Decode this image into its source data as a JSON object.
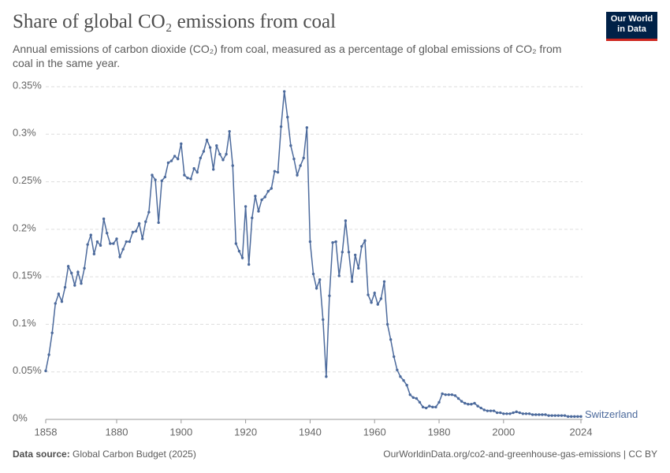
{
  "chart_data": {
    "type": "line",
    "title": "Share of global CO₂ emissions from coal",
    "subtitle": "Annual emissions of carbon dioxide (CO₂) from coal, measured as a percentage of global emissions of CO₂ from coal in the same year.",
    "logo": [
      "Our World",
      "in Data"
    ],
    "source_label": "Data source:",
    "source": "Global Carbon Budget (2025)",
    "credit": "OurWorldinData.org/co2-and-greenhouse-gas-emissions | CC BY",
    "x": [
      1858,
      1859,
      1860,
      1861,
      1862,
      1863,
      1864,
      1865,
      1866,
      1867,
      1868,
      1869,
      1870,
      1871,
      1872,
      1873,
      1874,
      1875,
      1876,
      1877,
      1878,
      1879,
      1880,
      1881,
      1882,
      1883,
      1884,
      1885,
      1886,
      1887,
      1888,
      1889,
      1890,
      1891,
      1892,
      1893,
      1894,
      1895,
      1896,
      1897,
      1898,
      1899,
      1900,
      1901,
      1902,
      1903,
      1904,
      1905,
      1906,
      1907,
      1908,
      1909,
      1910,
      1911,
      1912,
      1913,
      1914,
      1915,
      1916,
      1917,
      1918,
      1919,
      1920,
      1921,
      1922,
      1923,
      1924,
      1925,
      1926,
      1927,
      1928,
      1929,
      1930,
      1931,
      1932,
      1933,
      1934,
      1935,
      1936,
      1937,
      1938,
      1939,
      1940,
      1941,
      1942,
      1943,
      1944,
      1945,
      1946,
      1947,
      1948,
      1949,
      1950,
      1951,
      1952,
      1953,
      1954,
      1955,
      1956,
      1957,
      1958,
      1959,
      1960,
      1961,
      1962,
      1963,
      1964,
      1965,
      1966,
      1967,
      1968,
      1969,
      1970,
      1971,
      1972,
      1973,
      1974,
      1975,
      1976,
      1977,
      1978,
      1979,
      1980,
      1981,
      1982,
      1983,
      1984,
      1985,
      1986,
      1987,
      1988,
      1989,
      1990,
      1991,
      1992,
      1993,
      1994,
      1995,
      1996,
      1997,
      1998,
      1999,
      2000,
      2001,
      2002,
      2003,
      2004,
      2005,
      2006,
      2007,
      2008,
      2009,
      2010,
      2011,
      2012,
      2013,
      2014,
      2015,
      2016,
      2017,
      2018,
      2019,
      2020,
      2021,
      2022,
      2023,
      2024
    ],
    "series": [
      {
        "name": "Switzerland",
        "color": "#4c6a9c",
        "values": [
          0.051,
          0.068,
          0.091,
          0.122,
          0.132,
          0.124,
          0.139,
          0.161,
          0.154,
          0.141,
          0.155,
          0.143,
          0.159,
          0.184,
          0.194,
          0.174,
          0.187,
          0.183,
          0.211,
          0.196,
          0.185,
          0.185,
          0.19,
          0.171,
          0.179,
          0.187,
          0.187,
          0.197,
          0.198,
          0.206,
          0.19,
          0.208,
          0.218,
          0.257,
          0.252,
          0.207,
          0.251,
          0.255,
          0.27,
          0.272,
          0.277,
          0.274,
          0.29,
          0.257,
          0.254,
          0.253,
          0.264,
          0.26,
          0.275,
          0.282,
          0.294,
          0.286,
          0.263,
          0.288,
          0.279,
          0.273,
          0.279,
          0.303,
          0.267,
          0.185,
          0.177,
          0.17,
          0.224,
          0.163,
          0.212,
          0.235,
          0.219,
          0.231,
          0.234,
          0.24,
          0.243,
          0.261,
          0.26,
          0.308,
          0.345,
          0.318,
          0.288,
          0.274,
          0.257,
          0.267,
          0.275,
          0.307,
          0.187,
          0.153,
          0.138,
          0.147,
          0.105,
          0.045,
          0.13,
          0.186,
          0.187,
          0.151,
          0.176,
          0.209,
          0.176,
          0.145,
          0.173,
          0.159,
          0.182,
          0.188,
          0.131,
          0.123,
          0.133,
          0.121,
          0.127,
          0.145,
          0.1,
          0.084,
          0.066,
          0.052,
          0.045,
          0.041,
          0.036,
          0.026,
          0.023,
          0.022,
          0.018,
          0.013,
          0.012,
          0.014,
          0.013,
          0.013,
          0.018,
          0.027,
          0.026,
          0.026,
          0.026,
          0.025,
          0.022,
          0.019,
          0.017,
          0.016,
          0.016,
          0.017,
          0.014,
          0.012,
          0.01,
          0.009,
          0.009,
          0.009,
          0.007,
          0.007,
          0.006,
          0.006,
          0.006,
          0.007,
          0.008,
          0.007,
          0.006,
          0.006,
          0.006,
          0.005,
          0.005,
          0.005,
          0.005,
          0.005,
          0.004,
          0.004,
          0.004,
          0.004,
          0.004,
          0.004,
          0.003,
          0.003,
          0.003,
          0.003,
          0.003
        ]
      }
    ],
    "xlim": [
      1858,
      2024
    ],
    "xticks": [
      1858,
      1880,
      1900,
      1920,
      1940,
      1960,
      1980,
      2000,
      2024
    ],
    "ylim": [
      0,
      0.35
    ],
    "yticks": [
      {
        "value": 0,
        "label": "0%"
      },
      {
        "value": 0.05,
        "label": "0.05%"
      },
      {
        "value": 0.1,
        "label": "0.1%"
      },
      {
        "value": 0.15,
        "label": "0.15%"
      },
      {
        "value": 0.2,
        "label": "0.2%"
      },
      {
        "value": 0.25,
        "label": "0.25%"
      },
      {
        "value": 0.3,
        "label": "0.3%"
      },
      {
        "value": 0.35,
        "label": "0.35%"
      }
    ],
    "grid": true
  }
}
